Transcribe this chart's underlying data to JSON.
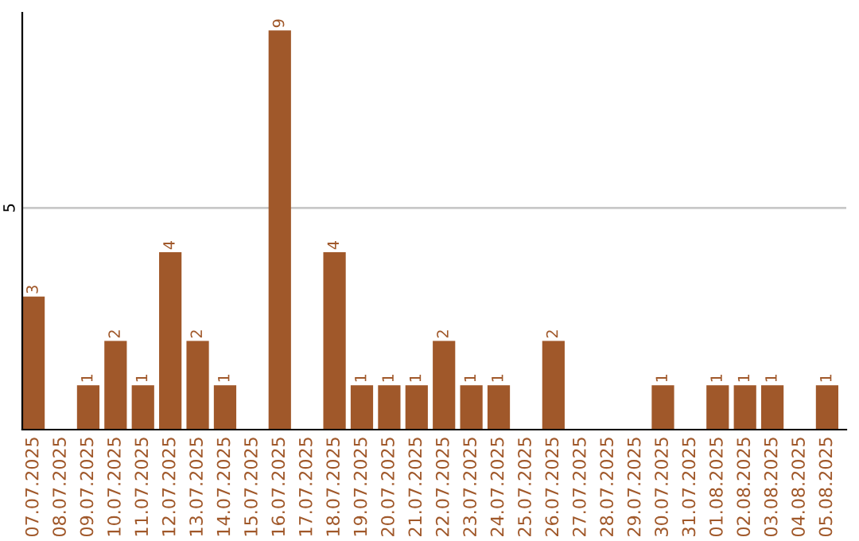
{
  "chart_data": {
    "type": "bar",
    "categories": [
      "07.07.2025",
      "08.07.2025",
      "09.07.2025",
      "10.07.2025",
      "11.07.2025",
      "12.07.2025",
      "13.07.2025",
      "14.07.2025",
      "15.07.2025",
      "16.07.2025",
      "17.07.2025",
      "18.07.2025",
      "19.07.2025",
      "20.07.2025",
      "21.07.2025",
      "22.07.2025",
      "23.07.2025",
      "24.07.2025",
      "25.07.2025",
      "26.07.2025",
      "27.07.2025",
      "28.07.2025",
      "29.07.2025",
      "30.07.2025",
      "31.07.2025",
      "01.08.2025",
      "02.08.2025",
      "03.08.2025",
      "04.08.2025",
      "05.08.2025"
    ],
    "values": [
      3,
      0,
      1,
      2,
      1,
      4,
      2,
      1,
      0,
      9,
      0,
      4,
      1,
      1,
      1,
      2,
      1,
      1,
      0,
      2,
      0,
      0,
      0,
      1,
      0,
      1,
      1,
      1,
      0,
      1
    ],
    "value_labels": [
      "3",
      null,
      "1",
      "2",
      "1",
      "4",
      "2",
      "1",
      null,
      "9",
      null,
      "4",
      "1",
      "1",
      "1",
      "2",
      "1",
      "1",
      null,
      "2",
      null,
      null,
      null,
      "1",
      null,
      "1",
      "1",
      "1",
      null,
      "1"
    ],
    "color": "#a0582a",
    "ylim": [
      0,
      9.4
    ],
    "yticks": [
      5
    ],
    "grid": "y"
  }
}
